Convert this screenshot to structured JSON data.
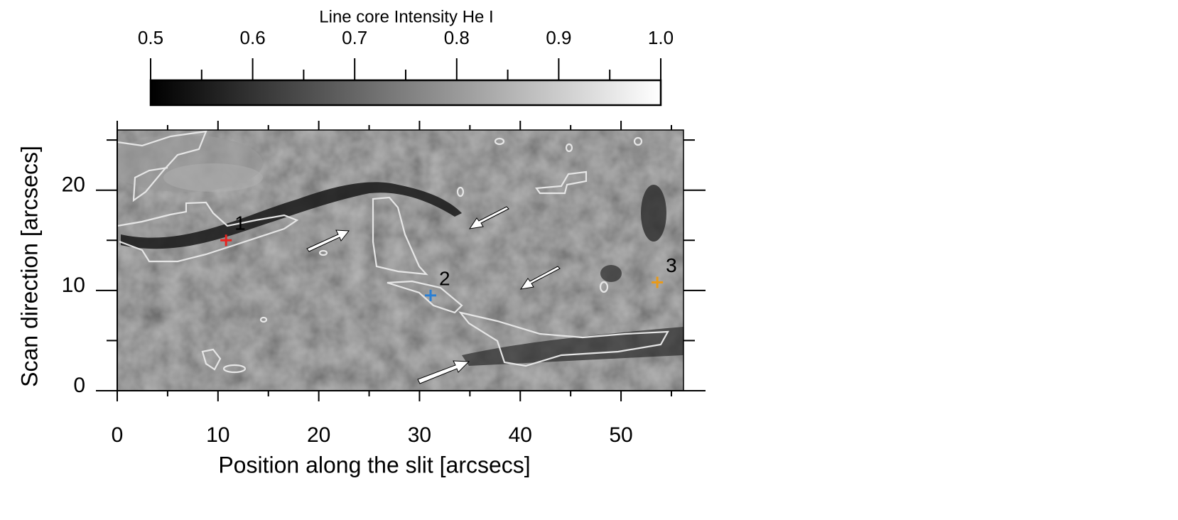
{
  "chart_data": {
    "type": "image",
    "title": "Line core Intensity He I",
    "xlabel": "Position along the slit [arcsecs]",
    "ylabel": "Scan direction [arcsecs]",
    "xlim": [
      0,
      56.2
    ],
    "ylim": [
      0,
      26
    ],
    "xticks": [
      0,
      10,
      20,
      30,
      40,
      50
    ],
    "xminor_ticks": [
      5,
      15,
      25,
      35,
      45,
      55
    ],
    "yticks": [
      0,
      10,
      20
    ],
    "yminor_ticks": [
      5,
      15,
      25
    ],
    "colorbar": {
      "lim": [
        0.5,
        1
      ],
      "colors": [
        "#000000",
        "#ffffff"
      ],
      "ticks": [
        0.5,
        0.6,
        0.7,
        0.8,
        0.9,
        {
          "value": 1,
          "label": "1.0"
        }
      ],
      "minor_ticks": [
        0.55,
        0.65,
        0.75,
        0.85,
        0.95
      ]
    },
    "points": [
      {
        "label": "1",
        "x": 10.8,
        "y": 15,
        "color": "#e8231f"
      },
      {
        "label": "2",
        "x": 31.1,
        "y": 9.5,
        "color": "#2a7fd4"
      },
      {
        "label": "3",
        "x": 53.6,
        "y": 10.8,
        "color": "#e89a1a"
      }
    ]
  }
}
